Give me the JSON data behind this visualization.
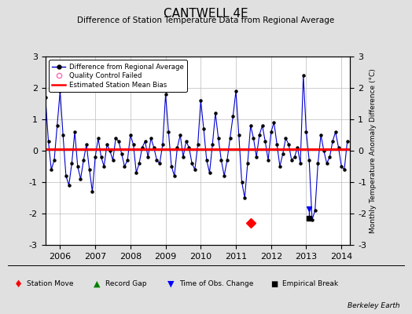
{
  "title": "CANTWELL 4E",
  "subtitle": "Difference of Station Temperature Data from Regional Average",
  "ylabel_right": "Monthly Temperature Anomaly Difference (°C)",
  "ylim": [
    -3,
    3
  ],
  "xlim": [
    2005.58,
    2014.25
  ],
  "yticks": [
    -3,
    -2,
    -1,
    0,
    1,
    2,
    3
  ],
  "xticks": [
    2006,
    2007,
    2008,
    2009,
    2010,
    2011,
    2012,
    2013,
    2014
  ],
  "bias_value": 0.05,
  "background_color": "#e0e0e0",
  "plot_bg_color": "#ffffff",
  "line_color": "#0000cc",
  "bias_color": "#ff0000",
  "marker_color": "#000000",
  "station_move_x": 2011.42,
  "station_move_y": -2.3,
  "empirical_break_x": 2013.08,
  "empirical_break_y": -2.15,
  "time_obs_x": 2013.08,
  "time_obs_top": -1.85,
  "time_obs_bottom": -2.15,
  "data_x": [
    2005.583,
    2005.667,
    2005.75,
    2005.833,
    2005.917,
    2006.0,
    2006.083,
    2006.167,
    2006.25,
    2006.333,
    2006.417,
    2006.5,
    2006.583,
    2006.667,
    2006.75,
    2006.833,
    2006.917,
    2007.0,
    2007.083,
    2007.167,
    2007.25,
    2007.333,
    2007.417,
    2007.5,
    2007.583,
    2007.667,
    2007.75,
    2007.833,
    2007.917,
    2008.0,
    2008.083,
    2008.167,
    2008.25,
    2008.333,
    2008.417,
    2008.5,
    2008.583,
    2008.667,
    2008.75,
    2008.833,
    2008.917,
    2009.0,
    2009.083,
    2009.167,
    2009.25,
    2009.333,
    2009.417,
    2009.5,
    2009.583,
    2009.667,
    2009.75,
    2009.833,
    2009.917,
    2010.0,
    2010.083,
    2010.167,
    2010.25,
    2010.333,
    2010.417,
    2010.5,
    2010.583,
    2010.667,
    2010.75,
    2010.833,
    2010.917,
    2011.0,
    2011.083,
    2011.167,
    2011.25,
    2011.333,
    2011.417,
    2011.5,
    2011.583,
    2011.667,
    2011.75,
    2011.833,
    2011.917,
    2012.0,
    2012.083,
    2012.167,
    2012.25,
    2012.333,
    2012.417,
    2012.5,
    2012.583,
    2012.667,
    2012.75,
    2012.833,
    2012.917,
    2013.0,
    2013.083,
    2013.167,
    2013.25,
    2013.333,
    2013.417,
    2013.5,
    2013.583,
    2013.667,
    2013.75,
    2013.833,
    2013.917,
    2014.0,
    2014.083,
    2014.167
  ],
  "data_y": [
    1.7,
    0.3,
    -0.6,
    -0.3,
    0.8,
    1.9,
    0.5,
    -0.8,
    -1.1,
    -0.4,
    0.6,
    -0.5,
    -0.9,
    -0.3,
    0.2,
    -0.6,
    -1.3,
    -0.2,
    0.4,
    -0.2,
    -0.5,
    0.2,
    0.0,
    -0.3,
    0.4,
    0.3,
    -0.1,
    -0.5,
    -0.3,
    0.5,
    0.2,
    -0.7,
    -0.4,
    0.1,
    0.3,
    -0.2,
    0.4,
    0.1,
    -0.3,
    -0.4,
    0.2,
    1.8,
    0.6,
    -0.5,
    -0.8,
    0.1,
    0.5,
    -0.2,
    0.3,
    0.1,
    -0.4,
    -0.6,
    0.2,
    1.6,
    0.7,
    -0.3,
    -0.7,
    0.2,
    1.2,
    0.4,
    -0.3,
    -0.8,
    -0.3,
    0.4,
    1.1,
    1.9,
    0.5,
    -1.0,
    -1.5,
    -0.4,
    0.8,
    0.4,
    -0.2,
    0.5,
    0.8,
    0.3,
    -0.3,
    0.6,
    0.9,
    0.2,
    -0.5,
    -0.1,
    0.4,
    0.2,
    -0.3,
    -0.2,
    0.1,
    -0.4,
    2.4,
    0.6,
    -0.3,
    -2.2,
    -1.9,
    -0.4,
    0.5,
    0.0,
    -0.4,
    -0.2,
    0.3,
    0.6,
    0.1,
    -0.5,
    -0.6,
    0.3
  ]
}
